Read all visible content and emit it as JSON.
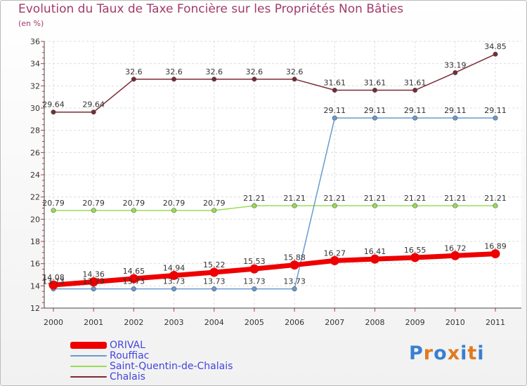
{
  "title": "Evolution du Taux de Taxe Foncière sur les Propriétés Non Bâties",
  "unit": "(en %)",
  "logo": "Proxiti",
  "chart_data": {
    "type": "line",
    "title": "Evolution du Taux de Taxe Foncière sur les Propriétés Non Bâties",
    "ylabel": "(en %)",
    "xlabel": "",
    "categories": [
      "2000",
      "2001",
      "2002",
      "2003",
      "2004",
      "2005",
      "2006",
      "2007",
      "2008",
      "2009",
      "2010",
      "2011"
    ],
    "ylim": [
      12,
      36
    ],
    "yticks": [
      12,
      14,
      16,
      18,
      20,
      22,
      24,
      26,
      28,
      30,
      32,
      34,
      36
    ],
    "grid": true,
    "legend_position": "bottom-left",
    "series": [
      {
        "name": "ORIVAL",
        "color": "#ee0000",
        "width": "thick",
        "values": [
          14.08,
          14.36,
          14.65,
          14.94,
          15.22,
          15.53,
          15.88,
          16.27,
          16.41,
          16.55,
          16.72,
          16.89
        ],
        "labels": [
          "14.08",
          "14.36",
          "14.65",
          "14.94",
          "15.22",
          "15.53",
          "15.88",
          "16.27",
          "16.41",
          "16.55",
          "16.72",
          "16.89"
        ]
      },
      {
        "name": "Rouffiac",
        "color": "#6a9ad0",
        "width": "thin",
        "values": [
          13.73,
          13.73,
          13.73,
          13.73,
          13.73,
          13.73,
          13.73,
          29.11,
          29.11,
          29.11,
          29.11,
          29.11
        ],
        "labels": [
          "13.73",
          "13.73",
          "13.73",
          "13.73",
          "13.73",
          "13.73",
          "13.73",
          "29.11",
          "29.11",
          "29.11",
          "29.11",
          "29.11"
        ]
      },
      {
        "name": "Saint-Quentin-de-Chalais",
        "color": "#99dd55",
        "width": "thin",
        "values": [
          20.79,
          20.79,
          20.79,
          20.79,
          20.79,
          21.21,
          21.21,
          21.21,
          21.21,
          21.21,
          21.21,
          21.21
        ],
        "labels": [
          "20.79",
          "20.79",
          "20.79",
          "20.79",
          "20.79",
          "21.21",
          "21.21",
          "21.21",
          "21.21",
          "21.21",
          "21.21",
          "21.21"
        ]
      },
      {
        "name": "Chalais",
        "color": "#7a2a33",
        "width": "thin",
        "values": [
          29.64,
          29.64,
          32.6,
          32.6,
          32.6,
          32.6,
          32.6,
          31.61,
          31.61,
          31.61,
          33.19,
          34.85
        ],
        "labels": [
          "29.64",
          "29.64",
          "32.6",
          "32.6",
          "32.6",
          "32.6",
          "32.6",
          "31.61",
          "31.61",
          "31.61",
          "33.19",
          "34.85"
        ]
      }
    ]
  }
}
